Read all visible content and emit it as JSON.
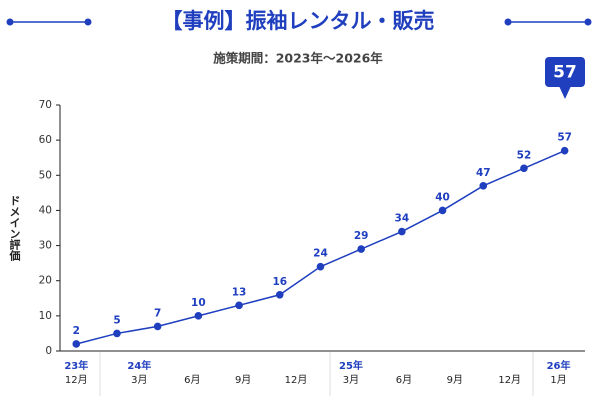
{
  "chart_data": {
    "type": "line",
    "title": "【事例】振袖レンタル・販売",
    "subtitle": "施策期間：2023年〜2026年",
    "y_label": "ドメイン評価",
    "x": [
      0,
      1,
      2,
      3,
      4,
      5,
      6,
      7,
      8,
      9,
      10,
      11,
      12
    ],
    "values": [
      2,
      5,
      7,
      10,
      13,
      16,
      24,
      29,
      34,
      40,
      47,
      52,
      57
    ],
    "color": "#1f3fbf",
    "xlim": [
      -0.4,
      12.5
    ],
    "xticks": [
      {
        "value": 0,
        "year": "23年",
        "label": "12月"
      },
      {
        "value": 1.55,
        "year": "24年",
        "label": "3月"
      },
      {
        "value": 2.85,
        "label": "6月"
      },
      {
        "value": 4.1,
        "label": "9月"
      },
      {
        "value": 5.4,
        "label": "12月"
      },
      {
        "value": 6.75,
        "year": "25年",
        "label": "3月"
      },
      {
        "value": 8.05,
        "label": "6月"
      },
      {
        "value": 9.3,
        "label": "9月"
      },
      {
        "value": 10.65,
        "label": "12月"
      },
      {
        "value": 11.85,
        "year": "26年",
        "label": "1月"
      }
    ],
    "ylim": [
      0,
      70
    ],
    "yticks": [
      0,
      10,
      20,
      30,
      40,
      50,
      60,
      70
    ],
    "grid": false
  }
}
